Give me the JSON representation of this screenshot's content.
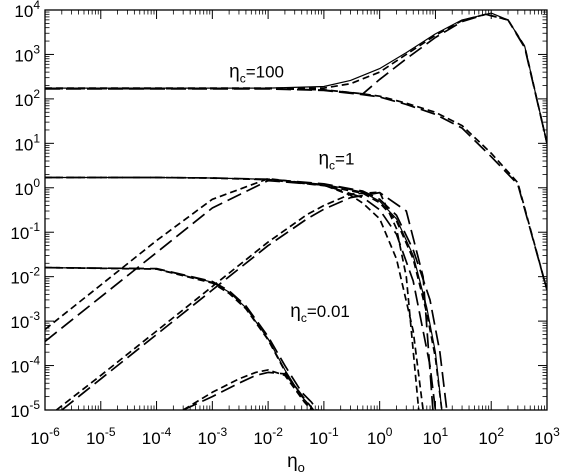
{
  "chart_data": {
    "type": "line",
    "title": "",
    "xlabel": {
      "base": "η",
      "sub": "o"
    },
    "ylabel": "",
    "xscale": "log",
    "yscale": "log",
    "xlim": [
      1e-06,
      1000
    ],
    "ylim": [
      1e-05,
      10000
    ],
    "grid": false,
    "legend": "none",
    "x_ticks": [
      {
        "value": 1e-06,
        "base": "10",
        "exp": "-6"
      },
      {
        "value": 1e-05,
        "base": "10",
        "exp": "-5"
      },
      {
        "value": 0.0001,
        "base": "10",
        "exp": "-4"
      },
      {
        "value": 0.001,
        "base": "10",
        "exp": "-3"
      },
      {
        "value": 0.01,
        "base": "10",
        "exp": "-2"
      },
      {
        "value": 0.1,
        "base": "10",
        "exp": "-1"
      },
      {
        "value": 1,
        "base": "10",
        "exp": "0"
      },
      {
        "value": 10,
        "base": "10",
        "exp": "1"
      },
      {
        "value": 100,
        "base": "10",
        "exp": "2"
      },
      {
        "value": 1000,
        "base": "10",
        "exp": "3"
      }
    ],
    "y_ticks": [
      {
        "value": 1e-05,
        "base": "10",
        "exp": "-5"
      },
      {
        "value": 0.0001,
        "base": "10",
        "exp": "-4"
      },
      {
        "value": 0.001,
        "base": "10",
        "exp": "-3"
      },
      {
        "value": 0.01,
        "base": "10",
        "exp": "-2"
      },
      {
        "value": 0.1,
        "base": "10",
        "exp": "-1"
      },
      {
        "value": 1,
        "base": "10",
        "exp": "0"
      },
      {
        "value": 10,
        "base": "10",
        "exp": "1"
      },
      {
        "value": 100,
        "base": "10",
        "exp": "2"
      },
      {
        "value": 1000,
        "base": "10",
        "exp": "3"
      },
      {
        "value": 10000,
        "base": "10",
        "exp": "4"
      }
    ],
    "annotations": [
      {
        "base": "η",
        "sub": "c",
        "rest": "=100",
        "x": 0.002,
        "y": 300
      },
      {
        "base": "η",
        "sub": "c",
        "rest": "=1",
        "x": 0.08,
        "y": 3.3
      },
      {
        "base": "η",
        "sub": "c",
        "rest": "=0.01",
        "x": 0.025,
        "y": 0.00125
      }
    ],
    "series": [
      {
        "style": "solid",
        "x": [
          1e-06,
          0.0001,
          0.01,
          0.1,
          0.3,
          1,
          3,
          10,
          30,
          100,
          200,
          400,
          1000
        ],
        "y": [
          175,
          175,
          175,
          190,
          260,
          480,
          1100,
          2900,
          6000,
          8500,
          6000,
          1500,
          10
        ]
      },
      {
        "style": "short-dash",
        "x": [
          1e-06,
          0.0001,
          0.01,
          0.1,
          0.3,
          1,
          3,
          10,
          30,
          80,
          200,
          400,
          1000
        ],
        "y": [
          175,
          175,
          175,
          175,
          220,
          400,
          1000,
          2700,
          5800,
          8000,
          6000,
          1500,
          10
        ]
      },
      {
        "style": "long-dash",
        "x": [
          1e-06,
          0.001,
          0.01,
          0.1,
          0.5,
          1,
          3,
          10,
          30,
          80,
          200,
          400,
          1000
        ],
        "y": [
          170,
          170,
          170,
          158,
          130,
          275,
          800,
          2400,
          5500,
          8000,
          6000,
          1400,
          10
        ]
      },
      {
        "style": "short-dash",
        "x": [
          1e-06,
          0.001,
          0.01,
          0.1,
          0.5,
          1,
          3,
          10,
          30,
          100,
          300,
          1000
        ],
        "y": [
          170,
          170,
          170,
          160,
          130,
          115,
          80,
          50,
          25,
          6,
          1.3,
          0.005
        ]
      },
      {
        "style": "long-dash",
        "x": [
          1e-06,
          0.001,
          0.01,
          0.1,
          0.5,
          1,
          3,
          10,
          30,
          100,
          300,
          1000
        ],
        "y": [
          168,
          168,
          168,
          155,
          125,
          110,
          75,
          45,
          22,
          5,
          1.2,
          0.005
        ]
      },
      {
        "style": "solid",
        "x": [
          1e-06,
          0.0001,
          0.001,
          0.01,
          0.1,
          0.5,
          1,
          2,
          4,
          7,
          10,
          13
        ],
        "y": [
          1.7,
          1.7,
          1.66,
          1.55,
          1.2,
          0.8,
          0.5,
          0.2,
          0.03,
          0.002,
          0.0002,
          1e-05
        ]
      },
      {
        "style": "short-dash",
        "x": [
          1e-06,
          0.0001,
          0.001,
          0.01,
          0.1,
          0.5,
          1,
          2,
          4,
          7,
          10,
          13
        ],
        "y": [
          1.7,
          1.7,
          1.65,
          1.52,
          1.12,
          0.75,
          0.46,
          0.18,
          0.025,
          0.0015,
          0.00015,
          1e-05
        ]
      },
      {
        "style": "long-dash",
        "x": [
          1e-06,
          0.0001,
          0.001,
          0.01,
          0.1,
          0.5,
          1,
          2,
          4,
          8,
          12,
          16
        ],
        "y": [
          1.7,
          1.7,
          1.66,
          1.56,
          1.23,
          0.84,
          0.55,
          0.24,
          0.04,
          0.003,
          0.0002,
          1e-05
        ]
      },
      {
        "style": "short-dash",
        "x": [
          1e-06,
          1e-05,
          0.0001,
          0.001,
          0.01,
          0.1,
          0.3,
          0.5,
          1,
          2,
          4,
          6
        ],
        "y": [
          0.00065,
          0.0065,
          0.065,
          0.55,
          1.6,
          1.15,
          0.68,
          0.45,
          0.2,
          0.025,
          0.0006,
          1e-05
        ]
      },
      {
        "style": "long-dash",
        "x": [
          1e-06,
          1e-05,
          0.0001,
          0.001,
          0.01,
          0.1,
          0.5,
          1,
          2,
          4,
          8,
          10
        ],
        "y": [
          0.00035,
          0.0035,
          0.035,
          0.35,
          1.45,
          1.15,
          0.6,
          0.32,
          0.09,
          0.008,
          0.0001,
          1e-05
        ]
      },
      {
        "style": "short-dash",
        "x": [
          1.6e-06,
          1e-05,
          0.0001,
          0.001,
          0.01,
          0.05,
          0.1,
          0.3,
          1,
          2,
          3,
          5
        ],
        "y": [
          1e-05,
          6e-05,
          0.0006,
          0.006,
          0.06,
          0.25,
          0.4,
          0.72,
          0.8,
          0.12,
          0.01,
          1e-05
        ]
      },
      {
        "style": "long-dash",
        "x": [
          2e-06,
          1e-05,
          0.0001,
          0.001,
          0.01,
          0.05,
          0.1,
          0.3,
          1,
          3,
          6,
          9
        ],
        "y": [
          1e-05,
          5e-05,
          0.0005,
          0.005,
          0.05,
          0.2,
          0.33,
          0.6,
          0.78,
          0.3,
          0.01,
          1e-05
        ]
      },
      {
        "style": "solid",
        "x": [
          1e-06,
          0.0001,
          0.001,
          0.002,
          0.004,
          0.01,
          0.02,
          0.04,
          0.055,
          0.062
        ],
        "y": [
          0.016,
          0.015,
          0.0075,
          0.0045,
          0.002,
          0.0004,
          8e-05,
          2e-05,
          1.3e-05,
          1e-05
        ]
      },
      {
        "style": "short-dash",
        "x": [
          1e-06,
          0.0001,
          0.001,
          0.002,
          0.004,
          0.01,
          0.02,
          0.04,
          0.055,
          0.062
        ],
        "y": [
          0.016,
          0.0148,
          0.0072,
          0.0042,
          0.0019,
          0.00038,
          7.5e-05,
          1.8e-05,
          1.2e-05,
          1e-05
        ]
      },
      {
        "style": "long-dash",
        "x": [
          1e-06,
          0.0001,
          0.001,
          0.002,
          0.004,
          0.01,
          0.02,
          0.04,
          0.06,
          0.075
        ],
        "y": [
          0.016,
          0.0152,
          0.0078,
          0.0048,
          0.0022,
          0.00045,
          0.0001,
          2.5e-05,
          1.5e-05,
          1e-05
        ]
      },
      {
        "style": "short-dash",
        "x": [
          0.0003,
          0.001,
          0.003,
          0.006,
          0.01,
          0.02,
          0.03,
          0.045,
          0.06
        ],
        "y": [
          1e-05,
          2.5e-05,
          5e-05,
          7e-05,
          8e-05,
          6e-05,
          3e-05,
          1.5e-05,
          1e-05
        ]
      },
      {
        "style": "long-dash",
        "x": [
          0.0003,
          0.001,
          0.003,
          0.006,
          0.01,
          0.02,
          0.03,
          0.045,
          0.065
        ],
        "y": [
          1e-05,
          2e-05,
          4e-05,
          6e-05,
          7e-05,
          6.5e-05,
          3.5e-05,
          1.8e-05,
          1e-05
        ]
      }
    ]
  }
}
